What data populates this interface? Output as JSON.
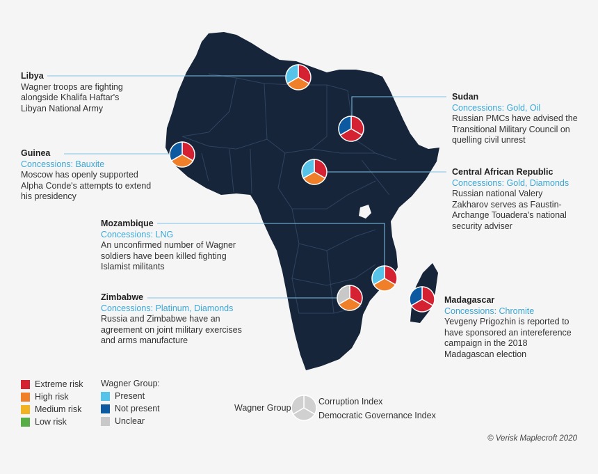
{
  "colors": {
    "land": "#16253a",
    "border": "#2f4460",
    "leader": "#7fc4e6",
    "extreme": "#d42232",
    "high": "#f07f2a",
    "medium": "#f2b323",
    "low": "#58ae46",
    "present": "#58c3e8",
    "not_present": "#0e5aa0",
    "unclear": "#c8c8c8"
  },
  "countries": [
    {
      "id": "libya",
      "name": "Libya",
      "concessions": "",
      "description": "Wagner troops are fighting alongside Khalifa Haftar's Libyan National Army",
      "pie": {
        "wagner": "present",
        "corruption": "extreme",
        "governance": "high"
      }
    },
    {
      "id": "sudan",
      "name": "Sudan",
      "concessions": "Concessions: Gold, Oil",
      "description": "Russian PMCs have advised the Transitional Military Council on quelling civil unrest",
      "pie": {
        "wagner": "not_present",
        "corruption": "extreme",
        "governance": "extreme"
      }
    },
    {
      "id": "guinea",
      "name": "Guinea",
      "concessions": "Concessions: Bauxite",
      "description": "Moscow has openly supported Alpha Conde's attempts to extend his presidency",
      "pie": {
        "wagner": "not_present",
        "corruption": "extreme",
        "governance": "high"
      }
    },
    {
      "id": "car",
      "name": "Central African Republic",
      "concessions": "Concessions: Gold, Diamonds",
      "description": "Russian national Valery Zakharov serves as Faustin-Archange Touadera's national security adviser",
      "pie": {
        "wagner": "present",
        "corruption": "extreme",
        "governance": "high"
      }
    },
    {
      "id": "mozambique",
      "name": "Mozambique",
      "concessions": "Concessions: LNG",
      "description": "An unconfirmed number of Wagner soldiers have been killed fighting Islamist militants",
      "pie": {
        "wagner": "present",
        "corruption": "extreme",
        "governance": "high"
      }
    },
    {
      "id": "zimbabwe",
      "name": "Zimbabwe",
      "concessions": "Concessions: Platinum, Diamonds",
      "description": "Russia and Zimbabwe have an agreement on joint military exercises and arms manufacture",
      "pie": {
        "wagner": "unclear",
        "corruption": "extreme",
        "governance": "high"
      }
    },
    {
      "id": "madagascar",
      "name": "Madagascar",
      "concessions": "Concessions: Chromite",
      "description": "Yevgeny Prigozhin is reported to have sponsored an intereference campaign in the 2018 Madagascan election",
      "pie": {
        "wagner": "not_present",
        "corruption": "extreme",
        "governance": "extreme"
      }
    }
  ],
  "legend_risk": {
    "items": [
      {
        "label": "Extreme risk",
        "color": "#d42232"
      },
      {
        "label": "High risk",
        "color": "#f07f2a"
      },
      {
        "label": "Medium risk",
        "color": "#f2b323"
      },
      {
        "label": "Low risk",
        "color": "#58ae46"
      }
    ]
  },
  "legend_wagner": {
    "title": "Wagner Group:",
    "items": [
      {
        "label": "Present",
        "color": "#58c3e8"
      },
      {
        "label": "Not present",
        "color": "#0e5aa0"
      },
      {
        "label": "Unclear",
        "color": "#c8c8c8"
      }
    ]
  },
  "pie_key": {
    "wagner": "Wagner Group",
    "corruption": "Corruption Index",
    "governance": "Democratic Governance Index"
  },
  "credit": "© Verisk Maplecroft 2020"
}
